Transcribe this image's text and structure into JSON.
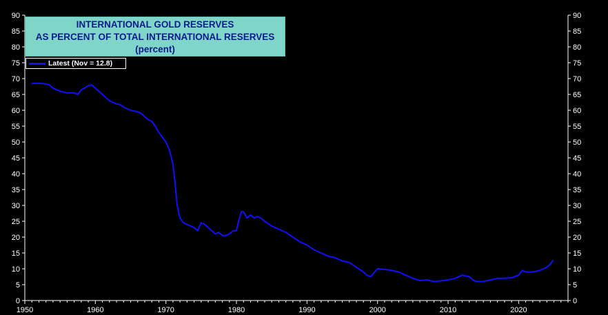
{
  "chart_data": {
    "type": "line",
    "title": [
      "INTERNATIONAL GOLD RESERVES",
      "AS PERCENT OF TOTAL INTERNATIONAL RESERVES",
      "(percent)"
    ],
    "legend": "Latest (Nov = 12.8)",
    "legend_placement": "top-left",
    "series_color": "#1010ff",
    "xlim": [
      1950,
      2027
    ],
    "ylim": [
      0,
      90
    ],
    "x_ticks": [
      1950,
      1960,
      1970,
      1980,
      1990,
      2000,
      2010,
      2020
    ],
    "y_ticks": [
      0,
      5,
      10,
      15,
      20,
      25,
      30,
      35,
      40,
      45,
      50,
      55,
      60,
      65,
      70,
      75,
      80,
      85,
      90
    ],
    "grid": false,
    "series": [
      {
        "x": [
          1951.0,
          1952.0,
          1953.0,
          1953.5,
          1954.0,
          1955.0,
          1956.0,
          1957.0,
          1957.5,
          1958.0,
          1958.5,
          1959.0,
          1959.5,
          1960.0,
          1960.5,
          1961.0,
          1961.5,
          1962.0,
          1962.5,
          1963.0,
          1963.5,
          1964.0,
          1965.0,
          1966.0,
          1966.5,
          1967.0,
          1967.5,
          1968.0,
          1968.5,
          1969.0,
          1969.5,
          1970.0,
          1970.5,
          1971.0,
          1971.3,
          1971.6,
          1972.0,
          1972.5,
          1973.0,
          1973.5,
          1974.0,
          1974.5,
          1975.0,
          1975.5,
          1976.0,
          1976.5,
          1977.0,
          1977.5,
          1978.0,
          1978.5,
          1979.0,
          1979.5,
          1980.0,
          1980.3,
          1980.7,
          1981.0,
          1981.5,
          1982.0,
          1982.5,
          1983.0,
          1983.5,
          1984.0,
          1985.0,
          1986.0,
          1987.0,
          1988.0,
          1989.0,
          1990.0,
          1991.0,
          1992.0,
          1993.0,
          1994.0,
          1995.0,
          1996.0,
          1997.0,
          1998.0,
          1998.5,
          1999.0,
          2000.0,
          2001.0,
          2002.0,
          2003.0,
          2004.0,
          2005.0,
          2006.0,
          2007.0,
          2008.0,
          2009.0,
          2010.0,
          2011.0,
          2012.0,
          2013.0,
          2013.5,
          2014.0,
          2015.0,
          2016.0,
          2017.0,
          2018.0,
          2019.0,
          2020.0,
          2020.5,
          2021.0,
          2022.0,
          2023.0,
          2024.0,
          2024.5,
          2024.9
        ],
        "y": [
          68.5,
          68.5,
          68.3,
          68.0,
          67.0,
          66.0,
          65.5,
          65.5,
          65.0,
          66.5,
          67.0,
          67.8,
          68.0,
          67.0,
          66.0,
          65.0,
          64.0,
          63.0,
          62.5,
          62.0,
          61.8,
          61.0,
          60.0,
          59.5,
          59.0,
          58.0,
          57.0,
          56.5,
          55.0,
          53.0,
          51.5,
          50.0,
          47.5,
          43.0,
          37.0,
          30.0,
          26.0,
          24.5,
          24.0,
          23.5,
          23.0,
          22.0,
          24.5,
          24.0,
          23.0,
          22.0,
          21.0,
          21.5,
          20.5,
          20.5,
          21.0,
          22.0,
          22.0,
          25.0,
          28.0,
          28.0,
          26.0,
          27.0,
          26.0,
          26.5,
          26.0,
          25.0,
          23.5,
          22.5,
          21.5,
          20.0,
          18.5,
          17.5,
          16.0,
          15.0,
          14.0,
          13.5,
          12.5,
          12.0,
          10.5,
          9.0,
          8.0,
          7.5,
          10.0,
          9.8,
          9.5,
          9.0,
          8.0,
          7.0,
          6.3,
          6.5,
          6.0,
          6.2,
          6.5,
          7.0,
          8.0,
          7.5,
          6.5,
          6.0,
          6.0,
          6.5,
          7.0,
          7.0,
          7.2,
          8.0,
          9.5,
          9.0,
          9.0,
          9.5,
          10.5,
          11.5,
          12.8
        ]
      }
    ]
  }
}
